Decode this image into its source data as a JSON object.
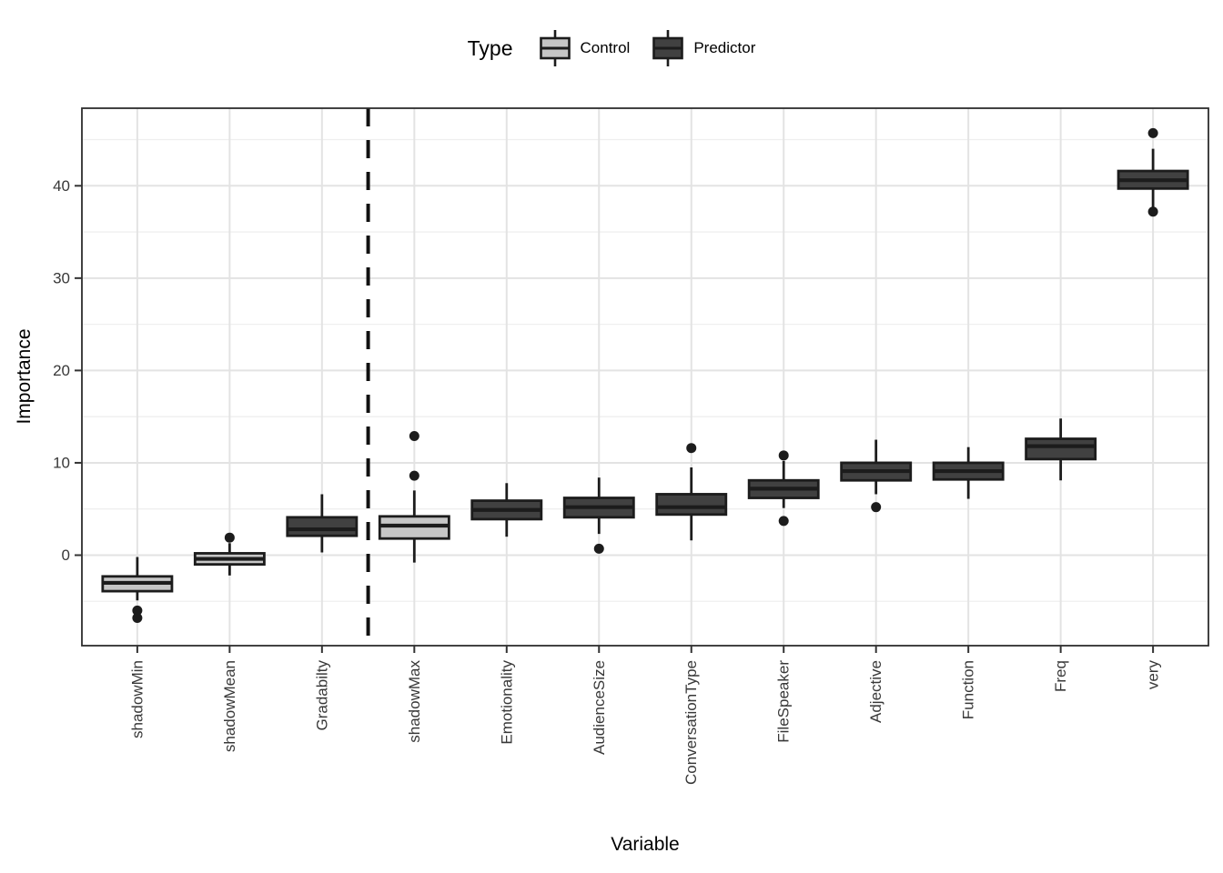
{
  "legend": {
    "title": "Type",
    "items": [
      {
        "label": "Control",
        "fill": "#C6C6C6"
      },
      {
        "label": "Predictor",
        "fill": "#414141"
      }
    ]
  },
  "axes": {
    "x_title": "Variable",
    "y_title": "Importance"
  },
  "chart_data": {
    "type": "boxplot",
    "title": "",
    "xlabel": "Variable",
    "ylabel": "Importance",
    "ylim": [
      -9.8,
      48.4
    ],
    "y_major_ticks": [
      0,
      10,
      20,
      30,
      40
    ],
    "y_minor_ticks": [
      -5,
      5,
      15,
      25,
      35,
      45
    ],
    "grid": true,
    "legend_position": "top",
    "divider_after_category": 3,
    "categories": [
      "shadowMin",
      "shadowMean",
      "Gradabilty",
      "shadowMax",
      "Emotionality",
      "AudienceSize",
      "ConversationType",
      "FileSpeaker",
      "Adjective",
      "Function",
      "Freq",
      "very"
    ],
    "boxes": [
      {
        "name": "shadowMin",
        "type": "Control",
        "whisker_low": -4.9,
        "q1": -3.9,
        "median": -3.0,
        "q3": -2.3,
        "whisker_high": -0.2,
        "outliers": [
          -6.0,
          -6.8
        ]
      },
      {
        "name": "shadowMean",
        "type": "Control",
        "whisker_low": -2.2,
        "q1": -1.0,
        "median": -0.4,
        "q3": 0.2,
        "whisker_high": 1.3,
        "outliers": [
          1.9
        ]
      },
      {
        "name": "Gradabilty",
        "type": "Predictor",
        "whisker_low": 0.3,
        "q1": 2.1,
        "median": 2.8,
        "q3": 4.1,
        "whisker_high": 6.6,
        "outliers": []
      },
      {
        "name": "shadowMax",
        "type": "Control",
        "whisker_low": -0.8,
        "q1": 1.8,
        "median": 3.2,
        "q3": 4.2,
        "whisker_high": 7.0,
        "outliers": [
          8.6,
          12.9
        ]
      },
      {
        "name": "Emotionality",
        "type": "Predictor",
        "whisker_low": 2.0,
        "q1": 3.9,
        "median": 4.9,
        "q3": 5.9,
        "whisker_high": 7.8,
        "outliers": []
      },
      {
        "name": "AudienceSize",
        "type": "Predictor",
        "whisker_low": 2.3,
        "q1": 4.1,
        "median": 5.2,
        "q3": 6.2,
        "whisker_high": 8.4,
        "outliers": [
          0.7
        ]
      },
      {
        "name": "ConversationType",
        "type": "Predictor",
        "whisker_low": 1.6,
        "q1": 4.4,
        "median": 5.2,
        "q3": 6.6,
        "whisker_high": 9.5,
        "outliers": [
          11.6
        ]
      },
      {
        "name": "FileSpeaker",
        "type": "Predictor",
        "whisker_low": 5.1,
        "q1": 6.2,
        "median": 7.2,
        "q3": 8.1,
        "whisker_high": 10.2,
        "outliers": [
          10.8,
          3.7
        ]
      },
      {
        "name": "Adjective",
        "type": "Predictor",
        "whisker_low": 6.6,
        "q1": 8.1,
        "median": 9.1,
        "q3": 10.0,
        "whisker_high": 12.5,
        "outliers": [
          5.2
        ]
      },
      {
        "name": "Function",
        "type": "Predictor",
        "whisker_low": 6.1,
        "q1": 8.2,
        "median": 9.1,
        "q3": 10.0,
        "whisker_high": 11.7,
        "outliers": []
      },
      {
        "name": "Freq",
        "type": "Predictor",
        "whisker_low": 8.1,
        "q1": 10.4,
        "median": 11.8,
        "q3": 12.6,
        "whisker_high": 14.8,
        "outliers": []
      },
      {
        "name": "very",
        "type": "Predictor",
        "whisker_low": 37.7,
        "q1": 39.7,
        "median": 40.6,
        "q3": 41.6,
        "whisker_high": 44.0,
        "outliers": [
          45.7,
          37.2
        ]
      }
    ]
  },
  "style": {
    "box_border": "#1C1C1C",
    "median_color": "#1C1C1C",
    "outlier_color": "#1C1C1C",
    "grid_major": "#E3E3E3",
    "grid_minor": "#EFEFEF",
    "panel_border": "#2E2E2E",
    "axis_tick_color": "#333333",
    "axis_text_color": "#383838",
    "divider_color": "#111111",
    "panel_background": "#FFFFFF"
  }
}
